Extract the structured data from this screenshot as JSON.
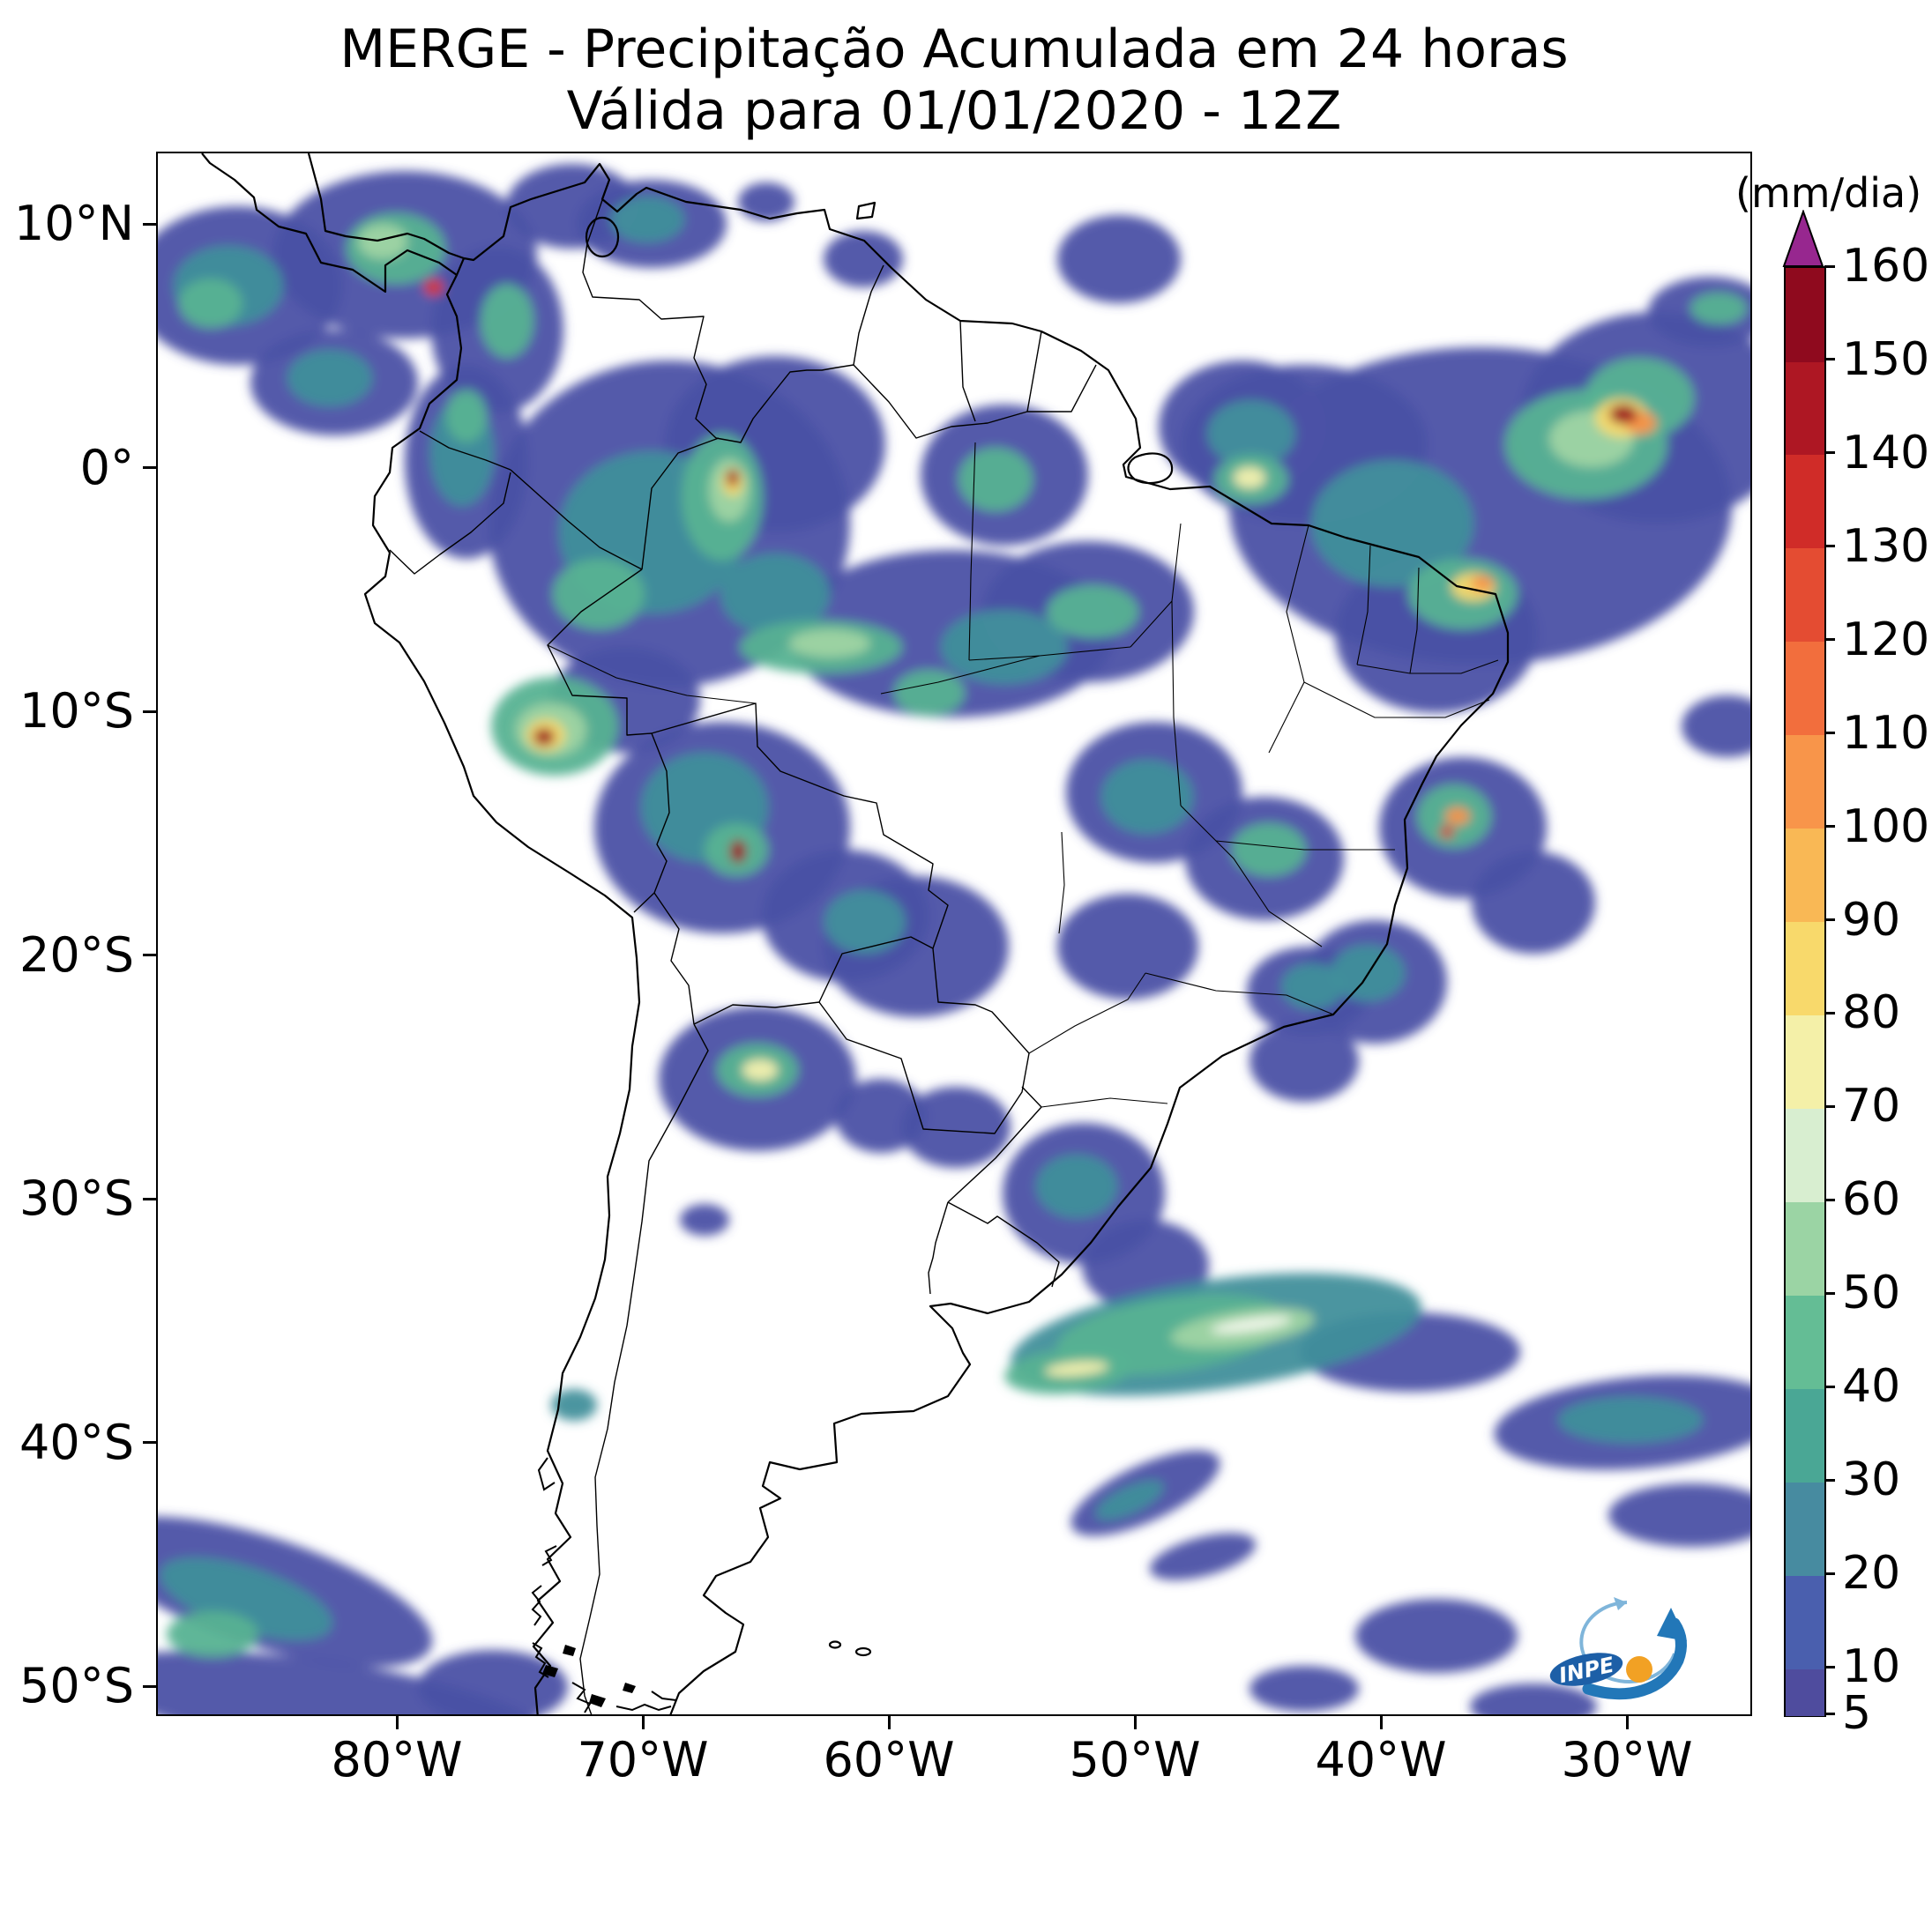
{
  "title": {
    "line1": "MERGE - Precipitação Acumulada em 24 horas",
    "line2": "Válida para 01/01/2020 - 12Z"
  },
  "axes": {
    "lat_ticks": [
      "10°N",
      "0°",
      "10°S",
      "20°S",
      "30°S",
      "40°S",
      "50°S"
    ],
    "lon_ticks": [
      "80°W",
      "70°W",
      "60°W",
      "50°W",
      "40°W",
      "30°W"
    ]
  },
  "colorbar": {
    "unit": "(mm/dia)",
    "vmin": 5,
    "vmax": 160,
    "ticks": [
      160,
      150,
      140,
      130,
      120,
      110,
      100,
      90,
      80,
      70,
      60,
      50,
      40,
      30,
      20,
      10,
      5
    ],
    "over_color": "#97278f",
    "segments": [
      {
        "from": 5,
        "to": 10,
        "color": "#4f4c9e"
      },
      {
        "from": 10,
        "to": 20,
        "color": "#4a5fae"
      },
      {
        "from": 20,
        "to": 30,
        "color": "#478ba0"
      },
      {
        "from": 30,
        "to": 40,
        "color": "#4aa795"
      },
      {
        "from": 40,
        "to": 50,
        "color": "#64bd95"
      },
      {
        "from": 50,
        "to": 60,
        "color": "#9bd4a4"
      },
      {
        "from": 60,
        "to": 70,
        "color": "#d8eed0"
      },
      {
        "from": 70,
        "to": 80,
        "color": "#f4f0a8"
      },
      {
        "from": 80,
        "to": 90,
        "color": "#f8d96b"
      },
      {
        "from": 90,
        "to": 100,
        "color": "#f9b855"
      },
      {
        "from": 100,
        "to": 110,
        "color": "#f8954a"
      },
      {
        "from": 110,
        "to": 120,
        "color": "#f26e3d"
      },
      {
        "from": 120,
        "to": 130,
        "color": "#e44c32"
      },
      {
        "from": 130,
        "to": 140,
        "color": "#d02c28"
      },
      {
        "from": 140,
        "to": 150,
        "color": "#ae1723"
      },
      {
        "from": 150,
        "to": 160,
        "color": "#8f0a1e"
      }
    ]
  },
  "logo": {
    "text": "INPE"
  },
  "map": {
    "palette": {
      "s": "#4b51a5",
      "t": "#418f9b",
      "g": "#57b292",
      "lg": "#9fd4a3",
      "pg": "#ddefd4",
      "py": "#f4f0ae",
      "y": "#f6d96b",
      "o": "#f79247",
      "r": "#d8372a",
      "dr": "#9c0f1e",
      "w": "#f6f9ee"
    },
    "blobs": [
      [
        90,
        150,
        120,
        90,
        "s"
      ],
      [
        280,
        115,
        150,
        95,
        "s"
      ],
      [
        200,
        260,
        95,
        60,
        "s"
      ],
      [
        385,
        200,
        75,
        95,
        "s"
      ],
      [
        470,
        60,
        75,
        48,
        "s"
      ],
      [
        560,
        80,
        85,
        50,
        "s"
      ],
      [
        350,
        350,
        70,
        110,
        "s"
      ],
      [
        580,
        420,
        205,
        185,
        "s"
      ],
      [
        700,
        330,
        125,
        100,
        "s"
      ],
      [
        900,
        545,
        185,
        95,
        "s"
      ],
      [
        1055,
        520,
        120,
        80,
        "s"
      ],
      [
        960,
        365,
        95,
        80,
        "s"
      ],
      [
        1090,
        120,
        70,
        50,
        "s"
      ],
      [
        800,
        120,
        45,
        32,
        "s"
      ],
      [
        690,
        55,
        32,
        22,
        "s"
      ],
      [
        1230,
        310,
        95,
        75,
        "s"
      ],
      [
        1500,
        400,
        285,
        180,
        "s"
      ],
      [
        1300,
        330,
        140,
        90,
        "s"
      ],
      [
        1700,
        300,
        155,
        120,
        "s"
      ],
      [
        1760,
        180,
        70,
        40,
        "s"
      ],
      [
        1450,
        545,
        115,
        90,
        "s"
      ],
      [
        530,
        620,
        85,
        60,
        "s"
      ],
      [
        640,
        765,
        145,
        120,
        "s"
      ],
      [
        780,
        865,
        95,
        75,
        "s"
      ],
      [
        860,
        900,
        105,
        80,
        "s"
      ],
      [
        1130,
        725,
        100,
        80,
        "s"
      ],
      [
        1255,
        800,
        90,
        70,
        "s"
      ],
      [
        1100,
        900,
        80,
        60,
        "s"
      ],
      [
        1305,
        950,
        70,
        50,
        "s"
      ],
      [
        1480,
        765,
        95,
        80,
        "s"
      ],
      [
        1560,
        850,
        70,
        58,
        "s"
      ],
      [
        1380,
        940,
        82,
        70,
        "s"
      ],
      [
        1300,
        1030,
        62,
        46,
        "s"
      ],
      [
        680,
        1050,
        112,
        82,
        "s"
      ],
      [
        820,
        1092,
        52,
        42,
        "s"
      ],
      [
        905,
        1105,
        62,
        46,
        "s"
      ],
      [
        1050,
        1180,
        92,
        80,
        "s"
      ],
      [
        1120,
        1262,
        72,
        52,
        "s"
      ],
      [
        1420,
        1360,
        125,
        45,
        "s"
      ],
      [
        1680,
        1440,
        165,
        52,
        "s",
        -5
      ],
      [
        1740,
        1545,
        95,
        36,
        "s"
      ],
      [
        1120,
        1520,
        92,
        32,
        "s",
        -25
      ],
      [
        1185,
        1592,
        62,
        22,
        "s",
        -15
      ],
      [
        120,
        1632,
        200,
        62,
        "s",
        18
      ],
      [
        185,
        1762,
        260,
        52,
        "s",
        8
      ],
      [
        380,
        1740,
        85,
        42,
        "s"
      ],
      [
        1450,
        1682,
        92,
        42,
        "s"
      ],
      [
        1300,
        1742,
        62,
        26,
        "s"
      ],
      [
        1560,
        1762,
        72,
        26,
        "s"
      ],
      [
        1780,
        650,
        52,
        35,
        "s"
      ],
      [
        620,
        1210,
        28,
        18,
        "s"
      ],
      [
        80,
        150,
        62,
        45,
        "t"
      ],
      [
        195,
        255,
        48,
        32,
        "t"
      ],
      [
        555,
        75,
        42,
        26,
        "t"
      ],
      [
        345,
        340,
        36,
        60,
        "t"
      ],
      [
        560,
        430,
        105,
        92,
        "t"
      ],
      [
        700,
        500,
        62,
        46,
        "t"
      ],
      [
        960,
        560,
        72,
        42,
        "t"
      ],
      [
        1400,
        420,
        92,
        72,
        "t"
      ],
      [
        1240,
        318,
        50,
        38,
        "t"
      ],
      [
        620,
        742,
        72,
        62,
        "t"
      ],
      [
        1122,
        730,
        52,
        42,
        "t"
      ],
      [
        1310,
        945,
        36,
        26,
        "t"
      ],
      [
        1372,
        930,
        42,
        32,
        "t"
      ],
      [
        1042,
        1172,
        46,
        36,
        "t"
      ],
      [
        1200,
        1340,
        235,
        62,
        "t",
        -8
      ],
      [
        1670,
        1437,
        82,
        26,
        "t"
      ],
      [
        1102,
        1528,
        42,
        15,
        "t",
        -25
      ],
      [
        100,
        1640,
        102,
        36,
        "t",
        18
      ],
      [
        472,
        1420,
        26,
        18,
        "t"
      ],
      [
        802,
        872,
        46,
        36,
        "t"
      ],
      [
        60,
        170,
        36,
        28,
        "g"
      ],
      [
        270,
        108,
        56,
        40,
        "g"
      ],
      [
        396,
        190,
        30,
        42,
        "g"
      ],
      [
        350,
        298,
        23,
        30,
        "g"
      ],
      [
        640,
        390,
        46,
        72,
        "g"
      ],
      [
        500,
        500,
        52,
        40,
        "g"
      ],
      [
        752,
        560,
        92,
        30,
        "g"
      ],
      [
        1060,
        520,
        52,
        30,
        "g"
      ],
      [
        1620,
        330,
        92,
        62,
        "g"
      ],
      [
        1680,
        278,
        62,
        46,
        "g"
      ],
      [
        1240,
        370,
        42,
        28,
        "g"
      ],
      [
        950,
        370,
        42,
        36,
        "g"
      ],
      [
        1480,
        500,
        62,
        40,
        "g"
      ],
      [
        450,
        650,
        72,
        56,
        "g"
      ],
      [
        656,
        790,
        36,
        30,
        "g"
      ],
      [
        1260,
        790,
        42,
        30,
        "g"
      ],
      [
        1470,
        752,
        42,
        36,
        "g"
      ],
      [
        680,
        1040,
        46,
        30,
        "g"
      ],
      [
        1150,
        1340,
        132,
        42,
        "g",
        -8
      ],
      [
        1032,
        1382,
        72,
        25,
        "g",
        -5
      ],
      [
        62,
        1680,
        52,
        26,
        "g"
      ],
      [
        875,
        612,
        40,
        26,
        "g"
      ],
      [
        1770,
        176,
        32,
        18,
        "g"
      ],
      [
        255,
        100,
        28,
        20,
        "lg"
      ],
      [
        648,
        382,
        23,
        36,
        "lg"
      ],
      [
        762,
        556,
        46,
        16,
        "lg"
      ],
      [
        446,
        654,
        40,
        30,
        "lg"
      ],
      [
        1626,
        324,
        48,
        32,
        "lg"
      ],
      [
        1230,
        1333,
        82,
        20,
        "lg",
        -8
      ],
      [
        683,
        1040,
        20,
        12,
        "py"
      ],
      [
        1238,
        368,
        18,
        12,
        "py"
      ],
      [
        1240,
        1329,
        46,
        7,
        "w",
        -8
      ],
      [
        1042,
        1379,
        36,
        8,
        "py",
        -5
      ],
      [
        440,
        660,
        22,
        18,
        "y"
      ],
      [
        652,
        373,
        12,
        16,
        "y"
      ],
      [
        1660,
        300,
        30,
        22,
        "y"
      ],
      [
        1492,
        492,
        25,
        16,
        "y"
      ],
      [
        1502,
        488,
        13,
        9,
        "o"
      ],
      [
        1474,
        752,
        14,
        10,
        "o"
      ],
      [
        1682,
        306,
        18,
        13,
        "o"
      ],
      [
        313,
        152,
        11,
        9,
        "r"
      ],
      [
        652,
        368,
        7,
        10,
        "dr"
      ],
      [
        1662,
        296,
        16,
        11,
        "dr"
      ],
      [
        438,
        662,
        12,
        10,
        "dr"
      ],
      [
        658,
        792,
        9,
        13,
        "dr"
      ],
      [
        1462,
        770,
        8,
        7,
        "r"
      ]
    ]
  }
}
